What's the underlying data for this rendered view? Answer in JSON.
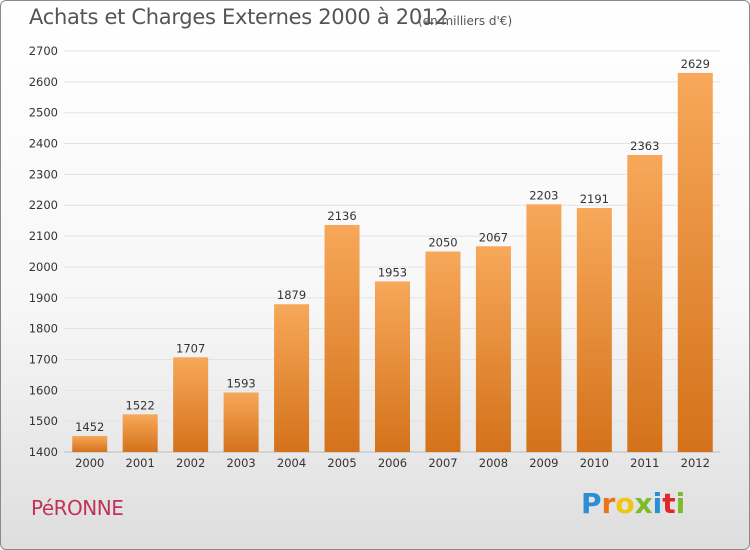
{
  "header": {
    "title": "Achats et Charges Externes 2000 à 2012",
    "unit": "(en milliers d'€)"
  },
  "footer": {
    "city": "PéRONNE",
    "logo_letters": [
      "P",
      "r",
      "o",
      "x",
      "i",
      "t",
      "i"
    ]
  },
  "colors": {
    "bar_top": "#f7a85a",
    "bar_bottom": "#d4721a",
    "grid": "#e3e3e3",
    "city": "#c1325a",
    "logo": [
      "#2a8fd4",
      "#e8741c",
      "#f2c511",
      "#7dbb2a",
      "#2a8fd4",
      "#e0272a",
      "#7dbb2a"
    ]
  },
  "chart_data": {
    "type": "bar",
    "categories": [
      "2000",
      "2001",
      "2002",
      "2003",
      "2004",
      "2005",
      "2006",
      "2007",
      "2008",
      "2009",
      "2010",
      "2011",
      "2012"
    ],
    "values": [
      1452,
      1522,
      1707,
      1593,
      1879,
      2136,
      1953,
      2050,
      2067,
      2203,
      2191,
      2363,
      2629
    ],
    "title": "Achats et Charges Externes 2000 à 2012",
    "xlabel": "",
    "ylabel": "",
    "ylim": [
      1400,
      2700
    ],
    "yticks": [
      1400,
      1500,
      1600,
      1700,
      1800,
      1900,
      2000,
      2100,
      2200,
      2300,
      2400,
      2500,
      2600,
      2700
    ],
    "grid": true,
    "show_value_labels": true
  }
}
